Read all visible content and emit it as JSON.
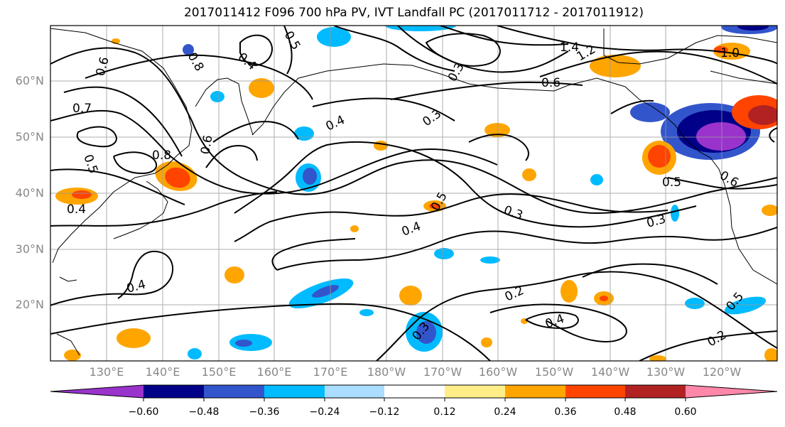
{
  "title": "2017011412 F096 700 hPa PV, IVT Landfall PC (2017011712 - 2017011912)",
  "lat_labels": [
    "60°N",
    "50°N",
    "40°N",
    "30°N",
    "20°N"
  ],
  "lon_labels": [
    "130°E",
    "140°E",
    "150°E",
    "160°E",
    "170°E",
    "180°W",
    "170°W",
    "160°W",
    "150°W",
    "140°W",
    "130°W",
    "120°W"
  ],
  "colorbar": {
    "colors": [
      "#9933cc",
      "#000088",
      "#3355cc",
      "#00bbff",
      "#aaddff",
      "#ffffff",
      "#ffee88",
      "#ffa500",
      "#ff4400",
      "#b22222",
      "#ff88aa"
    ],
    "tick_labels": [
      "−0.60",
      "−0.48",
      "−0.36",
      "−0.24",
      "−0.12",
      "0.12",
      "0.24",
      "0.36",
      "0.48",
      "0.60"
    ]
  },
  "contour_labels": [
    "0.6",
    "0.7",
    "0.5",
    "0.4",
    "0.8",
    "0.5",
    "0.4",
    "0.8",
    "0.6",
    "1.4",
    "1.2",
    "1.0",
    "0.6",
    "0.4",
    "0.3",
    "0.5",
    "0.4",
    "0.3",
    "0.3",
    "0.4",
    "0.2",
    "0.4",
    "0.3",
    "0.5",
    "0.2",
    "0.6",
    "0.5",
    "0.3"
  ]
}
